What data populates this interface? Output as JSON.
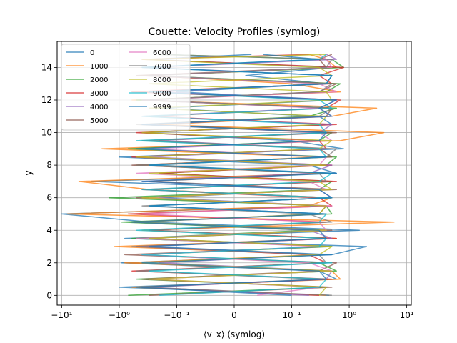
{
  "chart_data": {
    "type": "line",
    "title": "Couette: Velocity Profiles (symlog)",
    "xlabel": "⟨v_x⟩ (symlog)",
    "ylabel": "y",
    "x_scale": "symlog",
    "x_linthresh": 0.1,
    "xlim": [
      -12,
      12
    ],
    "ylim": [
      -0.6,
      15.6
    ],
    "grid": true,
    "legend_position": "top-left",
    "legend_columns": 2,
    "x_ticks": [
      {
        "value": -10,
        "label": "−10¹"
      },
      {
        "value": -1,
        "label": "−10⁰"
      },
      {
        "value": -0.1,
        "label": "−10⁻¹"
      },
      {
        "value": 0,
        "label": "0"
      },
      {
        "value": 0.1,
        "label": "10⁻¹"
      },
      {
        "value": 1,
        "label": "10⁰"
      },
      {
        "value": 10,
        "label": "10¹"
      }
    ],
    "y_ticks": [
      {
        "value": 0,
        "label": "0"
      },
      {
        "value": 2,
        "label": "2"
      },
      {
        "value": 4,
        "label": "4"
      },
      {
        "value": 6,
        "label": "6"
      },
      {
        "value": 8,
        "label": "8"
      },
      {
        "value": 10,
        "label": "10"
      },
      {
        "value": 12,
        "label": "12"
      },
      {
        "value": 14,
        "label": "14"
      }
    ],
    "y_values": [
      0.0,
      0.5,
      1.0,
      1.5,
      2.0,
      2.5,
      3.0,
      3.5,
      4.0,
      4.5,
      5.0,
      5.5,
      6.0,
      6.5,
      7.0,
      7.5,
      8.0,
      8.5,
      9.0,
      9.5,
      10.0,
      10.5,
      11.0,
      11.5,
      12.0,
      12.5,
      13.0,
      13.5,
      14.0,
      14.5,
      14.8
    ],
    "series": [
      {
        "name": "0",
        "color": "#1f77b4",
        "values": [
          0.45,
          -1.0,
          0.6,
          0.3,
          -0.9,
          0.5,
          2.0,
          -0.8,
          1.5,
          -0.3,
          -10.0,
          0.4,
          -0.2,
          0.3,
          -3.0,
          0.6,
          0.2,
          -1.0,
          0.8,
          0.1,
          -0.4,
          0.5,
          0.3,
          -0.2,
          0.6,
          -0.1,
          0.4,
          0.02,
          0.5,
          -0.3,
          0.03
        ]
      },
      {
        "name": "1000",
        "color": "#ff7f0e",
        "values": [
          0.4,
          -0.6,
          0.7,
          0.5,
          -0.8,
          0.3,
          -1.2,
          0.6,
          -0.4,
          6.0,
          -8.0,
          0.2,
          0.5,
          -0.3,
          -5.0,
          0.4,
          -0.5,
          0.3,
          -2.0,
          0.7,
          4.0,
          -0.2,
          0.5,
          3.0,
          -0.6,
          0.7,
          0.1,
          -0.3,
          0.6,
          0.4,
          0.2
        ]
      },
      {
        "name": "2000",
        "color": "#2ca02c",
        "values": [
          -0.7,
          0.4,
          -0.5,
          0.6,
          0.3,
          -0.4,
          0.5,
          -0.6,
          0.2,
          -0.9,
          0.5,
          0.4,
          -1.5,
          0.3,
          0.5,
          -0.2,
          0.4,
          0.6,
          -0.7,
          0.3,
          0.5,
          -0.4,
          0.2,
          0.6,
          -0.5,
          0.4,
          0.7,
          -0.3,
          0.8,
          0.5,
          -0.2
        ]
      },
      {
        "name": "3000",
        "color": "#d62728",
        "values": [
          0.3,
          -0.4,
          0.5,
          -0.6,
          0.4,
          0.2,
          -0.5,
          0.6,
          -0.3,
          0.4,
          -0.7,
          0.5,
          0.3,
          -0.4,
          0.6,
          -0.2,
          0.5,
          -0.6,
          0.4,
          0.3,
          -0.5,
          0.6,
          -0.3,
          0.4,
          0.7,
          -0.6,
          0.5,
          0.3,
          0.8,
          -0.4,
          0.2
        ]
      },
      {
        "name": "4000",
        "color": "#9467bd",
        "values": [
          0.2,
          -0.3,
          0.4,
          0.5,
          -0.2,
          0.3,
          -0.4,
          0.5,
          0.2,
          -0.5,
          0.4,
          -0.3,
          0.5,
          0.3,
          -0.4,
          0.2,
          0.5,
          -0.3,
          0.4,
          -0.2,
          0.3,
          0.5,
          -0.4,
          0.3,
          0.6,
          -0.2,
          0.4,
          0.5,
          -0.3,
          0.6,
          0.4
        ]
      },
      {
        "name": "5000",
        "color": "#8c564b",
        "values": [
          -0.3,
          0.5,
          -0.4,
          0.3,
          0.6,
          -0.8,
          0.4,
          -0.3,
          0.5,
          -0.6,
          0.3,
          0.4,
          -0.5,
          0.6,
          -0.3,
          0.4,
          -0.6,
          0.5,
          0.3,
          -0.4,
          0.6,
          -0.3,
          0.4,
          0.5,
          -0.4,
          0.3,
          0.6,
          -0.5,
          0.4,
          0.3,
          0.5
        ]
      },
      {
        "name": "6000",
        "color": "#e377c2",
        "values": [
          0.04,
          0.3,
          -0.3,
          0.5,
          0.2,
          -0.4,
          0.3,
          -0.5,
          0.4,
          0.3,
          -0.4,
          0.5,
          -0.3,
          0.4,
          0.2,
          -0.5,
          0.3,
          0.4,
          -0.3,
          0.5,
          0.3,
          -0.4,
          0.5,
          0.3,
          -0.4,
          0.6,
          0.3,
          -0.3,
          0.5,
          0.4,
          0.3
        ]
      },
      {
        "name": "7000",
        "color": "#7f7f7f",
        "values": [
          0.5,
          -0.4,
          0.3,
          -0.5,
          0.4,
          0.3,
          -0.6,
          0.4,
          -0.3,
          0.5,
          0.2,
          -0.4,
          0.5,
          -0.3,
          0.4,
          0.3,
          -0.5,
          0.4,
          0.6,
          -0.3,
          0.4,
          -0.5,
          0.3,
          0.5,
          -0.4,
          0.3,
          0.5,
          -0.3,
          0.4,
          0.5,
          -0.2
        ]
      },
      {
        "name": "8000",
        "color": "#bcbd22",
        "values": [
          0.3,
          0.4,
          -0.3,
          0.5,
          -0.4,
          0.3,
          0.5,
          -0.3,
          0.4,
          -0.5,
          0.3,
          0.4,
          -0.4,
          0.5,
          0.3,
          -0.3,
          0.4,
          -0.5,
          0.3,
          0.5,
          -0.4,
          0.3,
          0.4,
          -0.3,
          0.5,
          0.4,
          -0.3,
          0.5,
          0.3,
          -0.4,
          0.4
        ]
      },
      {
        "name": "9000",
        "color": "#17becf",
        "values": [
          -0.2,
          0.3,
          0.4,
          -0.3,
          0.5,
          -0.4,
          0.3,
          0.4,
          -0.5,
          0.3,
          0.4,
          -0.3,
          0.5,
          -0.4,
          0.3,
          0.5,
          -0.3,
          0.4,
          0.3,
          -0.5,
          0.4,
          0.3,
          -0.4,
          0.5,
          0.3,
          -0.3,
          0.4,
          0.5,
          -0.4,
          0.3,
          0.4
        ]
      },
      {
        "name": "9999",
        "color": "#1f77b4",
        "values": [
          0.1,
          -0.5,
          0.4,
          0.3,
          -0.4,
          0.5,
          -0.3,
          0.4,
          0.3,
          -0.6,
          0.4,
          -0.3,
          0.5,
          0.3,
          -0.4,
          0.6,
          -0.3,
          0.4,
          -0.5,
          0.3,
          0.4,
          -0.4,
          0.5,
          0.3,
          0.6,
          -0.3,
          0.4,
          0.5,
          -0.4,
          0.3,
          0.05
        ]
      }
    ]
  }
}
